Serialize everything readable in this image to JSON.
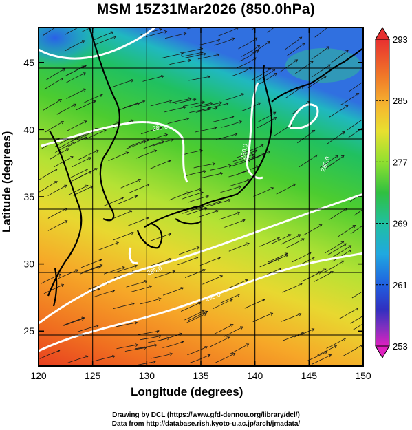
{
  "title": "MSM 15Z31Mar2026 (850.0hPa)",
  "xlabel": "Longitude (degrees)",
  "ylabel": "Latitude  (degrees)",
  "credits": {
    "line1": "Drawing by DCL (https://www.gfd-dennou.org/library/dcl/)",
    "line2": "Data from http://database.rish.kyoto-u.ac.jp/arch/jmadata/"
  },
  "chart_data": {
    "type": "heatmap",
    "title": "MSM 15Z31Mar2026 (850.0hPa)",
    "xlabel": "Longitude (degrees)",
    "ylabel": "Latitude  (degrees)",
    "xlim": [
      120,
      150
    ],
    "ylim": [
      22.4,
      47.6
    ],
    "xticks": [
      120,
      125,
      130,
      135,
      140,
      145,
      150
    ],
    "yticks": [
      25,
      30,
      35,
      40,
      45
    ],
    "colorbar": {
      "range": [
        253,
        293
      ],
      "ticks": [
        293,
        285,
        277,
        269,
        261,
        253
      ]
    },
    "isotherm_labels": [
      "280.0",
      "280.0",
      "285.0",
      "290.0",
      "280.0"
    ],
    "overlays": [
      "temperature shading",
      "streamlines",
      "white isotherms",
      "coastlines"
    ]
  }
}
